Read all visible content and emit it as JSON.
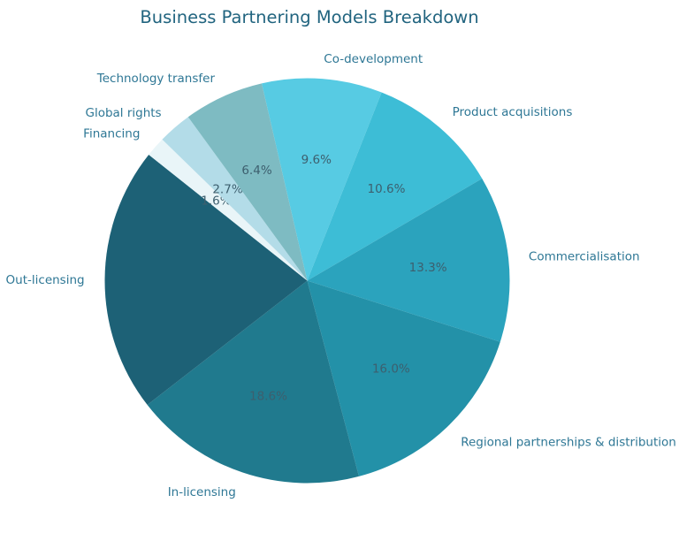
{
  "title": "Business Partnering Models Breakdown",
  "chart_data": {
    "type": "pie",
    "title": "Business Partnering Models Breakdown",
    "legend": "none",
    "direction": "clockwise",
    "start_angle_deg": -13,
    "title_color": "#21647f",
    "label_color": "#2e7795",
    "pct_color": "#3d5f6e",
    "background_color": "#ffffff",
    "slices": [
      {
        "label": "Co-development",
        "value": 9.6,
        "pct_label": "9.6%",
        "color": "#57cbe3"
      },
      {
        "label": "Product acquisitions",
        "value": 10.6,
        "pct_label": "10.6%",
        "color": "#3dbdd6"
      },
      {
        "label": "Commercialisation",
        "value": 13.3,
        "pct_label": "13.3%",
        "color": "#2ba3bd"
      },
      {
        "label": "Regional partnerships & distribution",
        "value": 16.0,
        "pct_label": "16.0%",
        "color": "#2391a8"
      },
      {
        "label": "In-licensing",
        "value": 18.6,
        "pct_label": "18.6%",
        "color": "#207a8e"
      },
      {
        "label": "Out-licensing",
        "value": 21.2,
        "pct_label": "",
        "color": "#1d6176"
      },
      {
        "label": "Financing",
        "value": 1.6,
        "pct_label": "1.6%",
        "color": "#e9f5f8"
      },
      {
        "label": "Global rights",
        "value": 2.7,
        "pct_label": "2.7%",
        "color": "#b3dce8"
      },
      {
        "label": "Technology transfer",
        "value": 6.4,
        "pct_label": "6.4%",
        "color": "#7ebbc2"
      }
    ]
  }
}
